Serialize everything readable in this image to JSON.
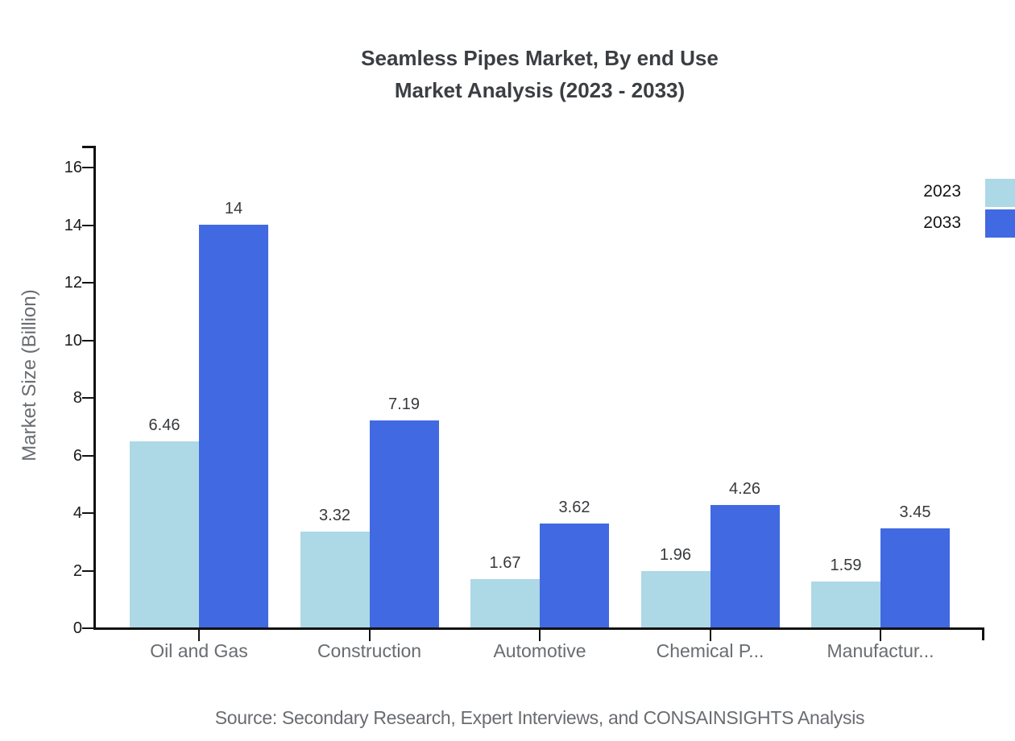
{
  "title": {
    "line1": "Seamless Pipes Market, By end Use",
    "line2": "Market Analysis (2023 - 2033)"
  },
  "source": "Source: Secondary Research, Expert Interviews, and CONSAINSIGHTS Analysis",
  "colors": {
    "series_2023": "#add8e6",
    "series_2033": "#4169e1",
    "axis": "#111111",
    "title_text": "#3b3e42",
    "muted_text": "#696c70",
    "value_label_text": "#37393c"
  },
  "chart_data": {
    "type": "bar",
    "title": "Seamless Pipes Market, By end Use Market Analysis (2023 - 2033)",
    "categories": [
      "Oil and Gas",
      "Construction",
      "Automotive",
      "Chemical P...",
      "Manufactur..."
    ],
    "series": [
      {
        "name": "2023",
        "color": "#add8e6",
        "values": [
          6.46,
          3.32,
          1.67,
          1.96,
          1.59
        ]
      },
      {
        "name": "2033",
        "color": "#4169e1",
        "values": [
          14,
          7.19,
          3.62,
          4.26,
          3.45
        ]
      }
    ],
    "xlabel": "",
    "ylabel": "Market Size (Billion)",
    "y_ticks": [
      0,
      2,
      4,
      6,
      8,
      10,
      12,
      14,
      16
    ],
    "ylim": [
      0,
      16.8
    ],
    "grid": false,
    "value_labels_shown": true,
    "legend_position": "top-right"
  }
}
